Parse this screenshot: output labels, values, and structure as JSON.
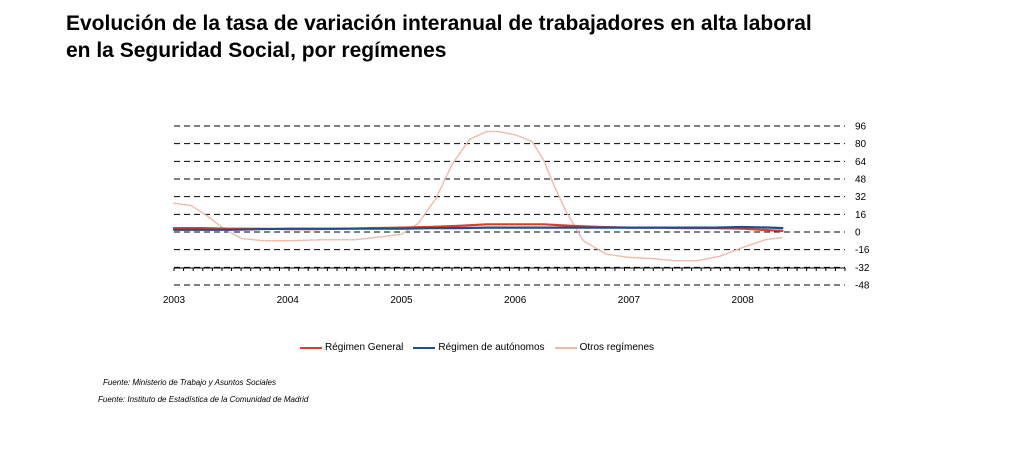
{
  "title": {
    "line1": "Evolución de la tasa de variación interanual de trabajadores en alta laboral",
    "line2": "en la Seguridad Social, por  regímenes"
  },
  "sources": [
    "Fuente: Ministerio de Trabajo y Asuntos Sociales",
    "Fuente: Instituto de Estadística de la Comunidad de Madrid"
  ],
  "chart_data": {
    "type": "line",
    "title": "Evolución de la tasa de variación interanual de trabajadores en alta laboral en la Seguridad Social, por  regímenes",
    "xlabel": "",
    "ylabel": "",
    "xlim": [
      2003.0,
      2008.9
    ],
    "ylim": [
      -48,
      96
    ],
    "yticks": [
      96,
      80,
      64,
      48,
      32,
      16,
      0,
      -16,
      -32,
      -48
    ],
    "xtick_labels": [
      "2003",
      "2004",
      "2005",
      "2006",
      "2007",
      "2008"
    ],
    "y_axis_position": "right",
    "grid": "horizontal dashed",
    "legend_position": "bottom",
    "series": [
      {
        "name": "Régimen General",
        "color": "#d9402b",
        "x": [
          2003.0,
          2003.25,
          2003.5,
          2003.75,
          2004.0,
          2004.25,
          2004.5,
          2004.75,
          2005.0,
          2005.25,
          2005.5,
          2005.75,
          2006.0,
          2006.25,
          2006.5,
          2006.75,
          2007.0,
          2007.25,
          2007.5,
          2007.75,
          2008.0,
          2008.25,
          2008.35
        ],
        "y": [
          3.5,
          3.5,
          3.0,
          3.0,
          2.5,
          2.5,
          3.0,
          3.5,
          4.0,
          4.5,
          5.5,
          7.0,
          7.0,
          7.0,
          5.5,
          4.5,
          4.0,
          4.0,
          3.5,
          3.5,
          3.0,
          1.5,
          1.0
        ]
      },
      {
        "name": "Régimen de autónomos",
        "color": "#1f4e8c",
        "x": [
          2003.0,
          2003.25,
          2003.5,
          2003.75,
          2004.0,
          2004.25,
          2004.5,
          2004.75,
          2005.0,
          2005.25,
          2005.5,
          2005.75,
          2006.0,
          2006.25,
          2006.5,
          2006.75,
          2007.0,
          2007.25,
          2007.5,
          2007.75,
          2008.0,
          2008.25,
          2008.35
        ],
        "y": [
          2.0,
          2.0,
          2.0,
          2.5,
          3.0,
          3.0,
          3.0,
          3.0,
          3.0,
          3.5,
          3.5,
          4.0,
          4.0,
          4.0,
          4.0,
          4.0,
          4.0,
          4.0,
          4.0,
          4.0,
          4.5,
          4.0,
          3.5
        ]
      },
      {
        "name": "Otros regímenes",
        "color": "#f0b8a8",
        "x": [
          2003.0,
          2003.15,
          2003.3,
          2003.45,
          2003.6,
          2003.8,
          2004.0,
          2004.3,
          2004.6,
          2004.85,
          2005.0,
          2005.15,
          2005.3,
          2005.45,
          2005.6,
          2005.75,
          2005.85,
          2006.0,
          2006.15,
          2006.25,
          2006.35,
          2006.45,
          2006.6,
          2006.8,
          2007.0,
          2007.2,
          2007.4,
          2007.6,
          2007.8,
          2008.0,
          2008.2,
          2008.35
        ],
        "y": [
          26,
          24,
          14,
          2,
          -6,
          -8,
          -8,
          -7,
          -7,
          -4,
          -2,
          8,
          30,
          62,
          84,
          91,
          91,
          88,
          82,
          65,
          40,
          18,
          -8,
          -20,
          -23,
          -24,
          -26,
          -26,
          -22,
          -14,
          -7,
          -5
        ]
      }
    ]
  }
}
